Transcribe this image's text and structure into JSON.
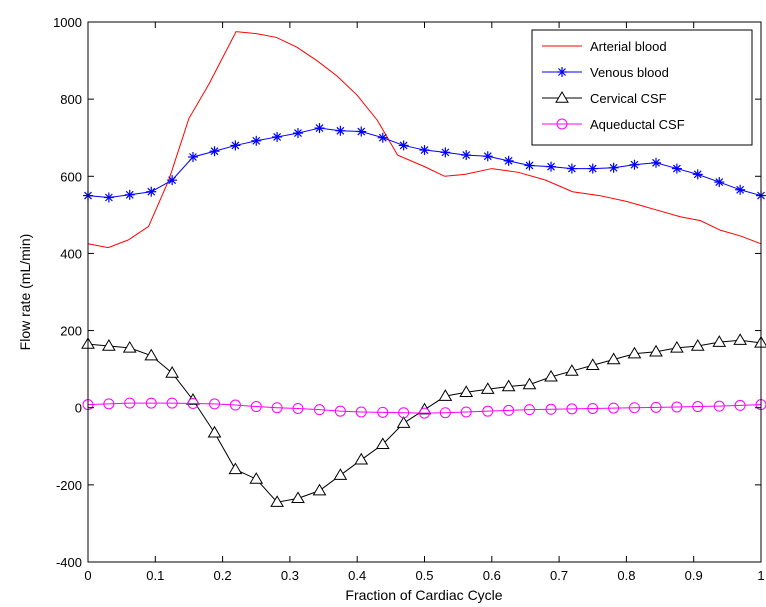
{
  "chart_data": {
    "type": "line",
    "xlabel": "Fraction of Cardiac Cycle",
    "ylabel": "Flow rate (mL/min)",
    "xlim": [
      0,
      1
    ],
    "ylim": [
      -400,
      1000
    ],
    "xticks": [
      0,
      0.1,
      0.2,
      0.3,
      0.4,
      0.5,
      0.6,
      0.7,
      0.8,
      0.9,
      1
    ],
    "xtick_labels": [
      "0",
      "0.1",
      "0.2",
      "0.3",
      "0.4",
      "0.5",
      "0.6",
      "0.7",
      "0.8",
      "0.9",
      "1"
    ],
    "yticks": [
      -400,
      -200,
      0,
      200,
      400,
      600,
      800,
      1000
    ],
    "ytick_labels": [
      "-400",
      "-200",
      "0",
      "200",
      "400",
      "600",
      "800",
      "1000"
    ],
    "grid": false,
    "legend_position": "top-right",
    "series": [
      {
        "name": "Arterial blood",
        "color": "#ff0000",
        "marker": "none",
        "x": [
          0,
          0.03,
          0.06,
          0.09,
          0.12,
          0.15,
          0.18,
          0.22,
          0.25,
          0.28,
          0.31,
          0.34,
          0.37,
          0.4,
          0.43,
          0.46,
          0.5,
          0.53,
          0.56,
          0.6,
          0.64,
          0.68,
          0.72,
          0.76,
          0.8,
          0.84,
          0.88,
          0.91,
          0.94,
          0.97,
          1.0
        ],
        "y": [
          425,
          415,
          435,
          470,
          590,
          750,
          840,
          975,
          970,
          960,
          935,
          900,
          860,
          810,
          745,
          655,
          625,
          600,
          605,
          620,
          610,
          590,
          560,
          550,
          535,
          515,
          495,
          485,
          460,
          445,
          425
        ]
      },
      {
        "name": "Venous blood",
        "color": "#0000ff",
        "marker": "star",
        "x": [
          0,
          0.031,
          0.062,
          0.094,
          0.125,
          0.156,
          0.188,
          0.219,
          0.25,
          0.281,
          0.312,
          0.344,
          0.375,
          0.406,
          0.438,
          0.469,
          0.5,
          0.531,
          0.562,
          0.594,
          0.625,
          0.656,
          0.688,
          0.719,
          0.75,
          0.781,
          0.812,
          0.844,
          0.875,
          0.906,
          0.938,
          0.969,
          1.0
        ],
        "y": [
          550,
          545,
          552,
          560,
          590,
          650,
          665,
          680,
          692,
          702,
          712,
          725,
          718,
          716,
          700,
          680,
          668,
          662,
          655,
          652,
          640,
          628,
          625,
          620,
          620,
          622,
          630,
          635,
          620,
          605,
          585,
          565,
          550
        ]
      },
      {
        "name": "Cervical CSF",
        "color": "#000000",
        "marker": "triangle",
        "x": [
          0,
          0.031,
          0.062,
          0.094,
          0.125,
          0.156,
          0.188,
          0.219,
          0.25,
          0.281,
          0.312,
          0.344,
          0.375,
          0.406,
          0.438,
          0.469,
          0.5,
          0.531,
          0.562,
          0.594,
          0.625,
          0.656,
          0.688,
          0.719,
          0.75,
          0.781,
          0.812,
          0.844,
          0.875,
          0.906,
          0.938,
          0.969,
          1.0
        ],
        "y": [
          165,
          160,
          155,
          135,
          90,
          20,
          -65,
          -160,
          -185,
          -245,
          -235,
          -215,
          -175,
          -135,
          -95,
          -40,
          -5,
          30,
          40,
          48,
          55,
          60,
          80,
          95,
          110,
          125,
          140,
          145,
          155,
          160,
          170,
          175,
          168
        ]
      },
      {
        "name": "Aqueductal CSF",
        "color": "#ff00ff",
        "marker": "circle",
        "x": [
          0,
          0.031,
          0.062,
          0.094,
          0.125,
          0.156,
          0.188,
          0.219,
          0.25,
          0.281,
          0.312,
          0.344,
          0.375,
          0.406,
          0.438,
          0.469,
          0.5,
          0.531,
          0.562,
          0.594,
          0.625,
          0.656,
          0.688,
          0.719,
          0.75,
          0.781,
          0.812,
          0.844,
          0.875,
          0.906,
          0.938,
          0.969,
          1.0
        ],
        "y": [
          8,
          10,
          12,
          12,
          12,
          11,
          10,
          7,
          3,
          0,
          -2,
          -5,
          -9,
          -11,
          -12,
          -13,
          -14,
          -13,
          -11,
          -9,
          -7,
          -5,
          -4,
          -3,
          -2,
          -1,
          0,
          1,
          2,
          3,
          4,
          6,
          8
        ]
      }
    ]
  }
}
